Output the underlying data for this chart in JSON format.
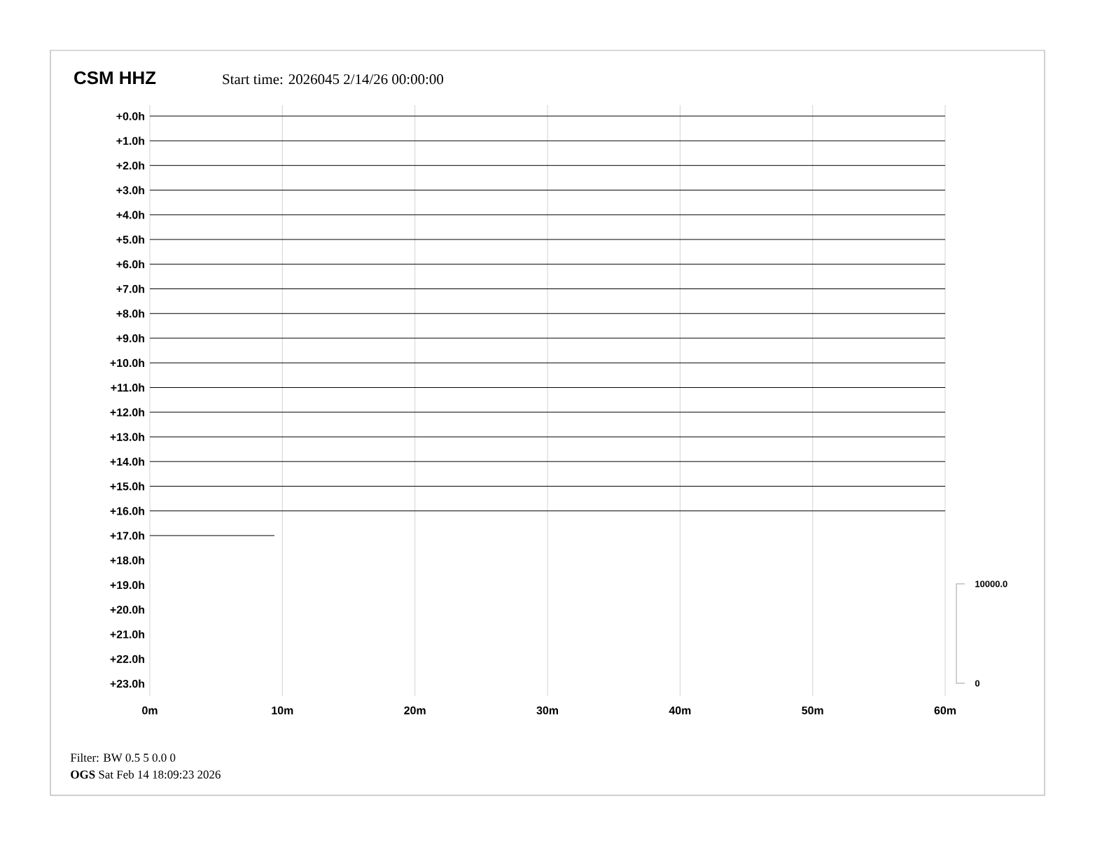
{
  "chart_data": {
    "type": "line",
    "title": "CSM HHZ",
    "subtitle": "Start time: 2026045  2/14/26 00:00:00",
    "xlim": [
      0,
      60
    ],
    "xticks": [
      {
        "value": 0,
        "label": "0m"
      },
      {
        "value": 10,
        "label": "10m"
      },
      {
        "value": 20,
        "label": "20m"
      },
      {
        "value": 30,
        "label": "30m"
      },
      {
        "value": 40,
        "label": "40m"
      },
      {
        "value": 50,
        "label": "50m"
      },
      {
        "value": 60,
        "label": "60m"
      }
    ],
    "ylim": [
      23.5,
      -0.45
    ],
    "yticks": [
      {
        "value": 0,
        "label": "+0.0h"
      },
      {
        "value": 1,
        "label": "+1.0h"
      },
      {
        "value": 2,
        "label": "+2.0h"
      },
      {
        "value": 3,
        "label": "+3.0h"
      },
      {
        "value": 4,
        "label": "+4.0h"
      },
      {
        "value": 5,
        "label": "+5.0h"
      },
      {
        "value": 6,
        "label": "+6.0h"
      },
      {
        "value": 7,
        "label": "+7.0h"
      },
      {
        "value": 8,
        "label": "+8.0h"
      },
      {
        "value": 9,
        "label": "+9.0h"
      },
      {
        "value": 10,
        "label": "+10.0h"
      },
      {
        "value": 11,
        "label": "+11.0h"
      },
      {
        "value": 12,
        "label": "+12.0h"
      },
      {
        "value": 13,
        "label": "+13.0h"
      },
      {
        "value": 14,
        "label": "+14.0h"
      },
      {
        "value": 15,
        "label": "+15.0h"
      },
      {
        "value": 16,
        "label": "+16.0h"
      },
      {
        "value": 17,
        "label": "+17.0h"
      },
      {
        "value": 18,
        "label": "+18.0h"
      },
      {
        "value": 19,
        "label": "+19.0h"
      },
      {
        "value": 20,
        "label": "+20.0h"
      },
      {
        "value": 21,
        "label": "+21.0h"
      },
      {
        "value": 22,
        "label": "+22.0h"
      },
      {
        "value": 23,
        "label": "+23.0h"
      }
    ],
    "grid": "x",
    "marker": "none",
    "line_style": "solid",
    "series": [
      {
        "color": "#000000",
        "x": [
          0,
          60
        ],
        "values": [
          0,
          0
        ]
      },
      {
        "color": "#000000",
        "x": [
          0,
          60
        ],
        "values": [
          1,
          1
        ]
      },
      {
        "color": "#000000",
        "x": [
          0,
          60
        ],
        "values": [
          2,
          2
        ]
      },
      {
        "color": "#000000",
        "x": [
          0,
          60
        ],
        "values": [
          3,
          3
        ]
      },
      {
        "color": "#000000",
        "x": [
          0,
          60
        ],
        "values": [
          4,
          4
        ]
      },
      {
        "color": "#000000",
        "x": [
          0,
          60
        ],
        "values": [
          5,
          5
        ]
      },
      {
        "color": "#000000",
        "x": [
          0,
          60
        ],
        "values": [
          6,
          6
        ]
      },
      {
        "color": "#000000",
        "x": [
          0,
          60
        ],
        "values": [
          7,
          7
        ]
      },
      {
        "color": "#000000",
        "x": [
          0,
          60
        ],
        "values": [
          8,
          8
        ]
      },
      {
        "color": "#000000",
        "x": [
          0,
          60
        ],
        "values": [
          9,
          9
        ]
      },
      {
        "color": "#000000",
        "x": [
          0,
          60
        ],
        "values": [
          10,
          10
        ]
      },
      {
        "color": "#000000",
        "x": [
          0,
          60
        ],
        "values": [
          11,
          11
        ]
      },
      {
        "color": "#000000",
        "x": [
          0,
          60
        ],
        "values": [
          12,
          12
        ]
      },
      {
        "color": "#000000",
        "x": [
          0,
          60
        ],
        "values": [
          13,
          13
        ]
      },
      {
        "color": "#000000",
        "x": [
          0,
          60
        ],
        "values": [
          14,
          14
        ]
      },
      {
        "color": "#000000",
        "x": [
          0,
          60
        ],
        "values": [
          15,
          15
        ]
      },
      {
        "color": "#000000",
        "x": [
          0,
          60
        ],
        "values": [
          16,
          16
        ]
      },
      {
        "color": "#000000",
        "x": [
          0,
          9.4
        ],
        "values": [
          17,
          17
        ]
      }
    ],
    "annotations": [
      "10000.0",
      "0",
      "Filter: BW 0.5 5 0.0 0",
      "**OGS**    Sat Feb 14 18:09:23 2026"
    ]
  }
}
